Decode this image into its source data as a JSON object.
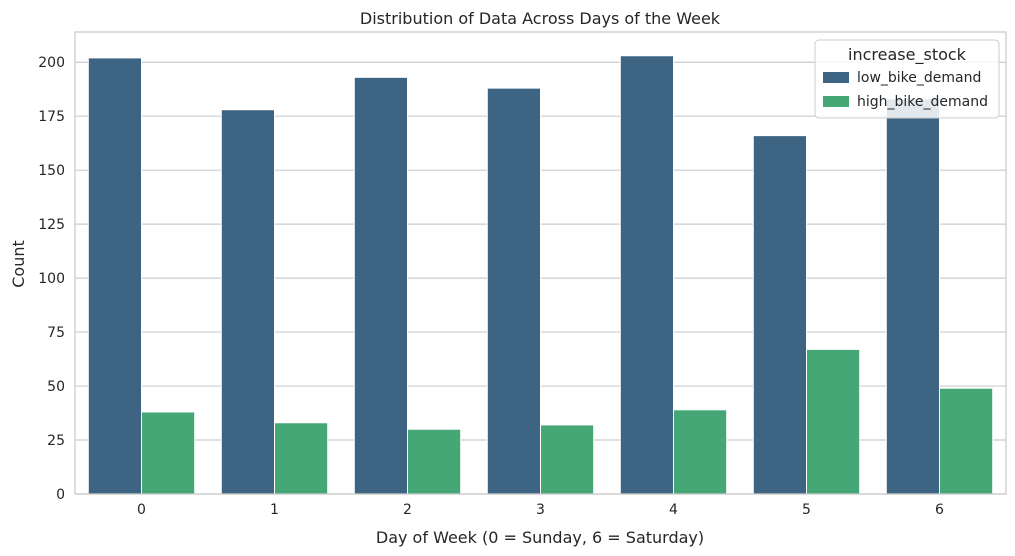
{
  "chart_data": {
    "type": "bar",
    "title": "Distribution of Data Across Days of the Week",
    "xlabel": "Day of Week (0 = Sunday, 6 = Saturday)",
    "ylabel": "Count",
    "categories": [
      "0",
      "1",
      "2",
      "3",
      "4",
      "5",
      "6"
    ],
    "ylim": [
      0,
      214
    ],
    "yticks": [
      0,
      25,
      50,
      75,
      100,
      125,
      150,
      175,
      200
    ],
    "grid": "horizontal",
    "legend": {
      "title": "increase_stock",
      "placement": "top-right"
    },
    "series": [
      {
        "name": "low_bike_demand",
        "color": "#3d6482",
        "values": [
          202,
          178,
          193,
          188,
          203,
          166,
          183
        ]
      },
      {
        "name": "high_bike_demand",
        "color": "#44a775",
        "values": [
          38,
          33,
          30,
          32,
          39,
          67,
          49
        ]
      }
    ]
  }
}
